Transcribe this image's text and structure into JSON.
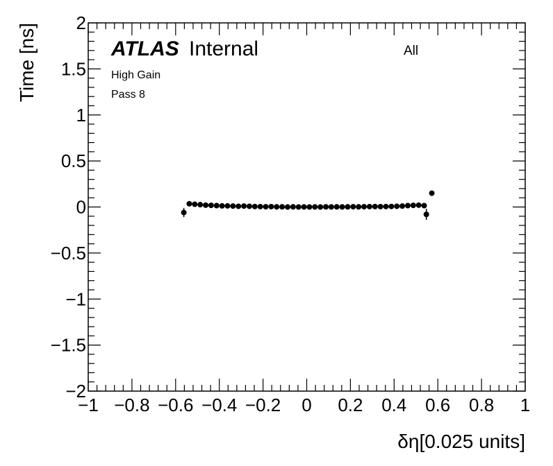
{
  "chart_data": {
    "type": "scatter",
    "title": "",
    "xlabel": "δη[0.025 units]",
    "ylabel": "Time [ns]",
    "xlim": [
      -1,
      1
    ],
    "ylim": [
      -2,
      2
    ],
    "x_tick_labels": [
      "−1",
      "−0.8",
      "−0.6",
      "−0.4",
      "−0.2",
      "0",
      "0.2",
      "0.4",
      "0.6",
      "0.8",
      "1"
    ],
    "x_tick_values": [
      -1,
      -0.8,
      -0.6,
      -0.4,
      -0.2,
      0,
      0.2,
      0.4,
      0.6,
      0.8,
      1
    ],
    "y_tick_labels": [
      "−2",
      "−1.5",
      "−1",
      "−0.5",
      "0",
      "0.5",
      "1",
      "1.5",
      "2"
    ],
    "y_tick_values": [
      -2,
      -1.5,
      -1,
      -0.5,
      0,
      0.5,
      1,
      1.5,
      2
    ],
    "grid": false,
    "series": [
      {
        "points": [
          {
            "x": -0.5625,
            "y": -0.06,
            "err": 0.05
          },
          {
            "x": -0.5375,
            "y": 0.035,
            "err": 0.005
          },
          {
            "x": -0.5125,
            "y": 0.03,
            "err": 0.005
          },
          {
            "x": -0.4875,
            "y": 0.025,
            "err": 0.005
          },
          {
            "x": -0.4625,
            "y": 0.02,
            "err": 0.005
          },
          {
            "x": -0.4375,
            "y": 0.018,
            "err": 0.005
          },
          {
            "x": -0.4125,
            "y": 0.015,
            "err": 0.005
          },
          {
            "x": -0.3875,
            "y": 0.012,
            "err": 0.005
          },
          {
            "x": -0.3625,
            "y": 0.012,
            "err": 0.005
          },
          {
            "x": -0.3375,
            "y": 0.01,
            "err": 0.005
          },
          {
            "x": -0.3125,
            "y": 0.008,
            "err": 0.005
          },
          {
            "x": -0.2875,
            "y": 0.01,
            "err": 0.005
          },
          {
            "x": -0.2625,
            "y": 0.008,
            "err": 0.005
          },
          {
            "x": -0.2375,
            "y": 0.005,
            "err": 0.005
          },
          {
            "x": -0.2125,
            "y": 0.004,
            "err": 0.005
          },
          {
            "x": -0.1875,
            "y": 0.003,
            "err": 0.005
          },
          {
            "x": -0.1625,
            "y": 0.004,
            "err": 0.005
          },
          {
            "x": -0.1375,
            "y": 0.002,
            "err": 0.005
          },
          {
            "x": -0.1125,
            "y": 0.002,
            "err": 0.005
          },
          {
            "x": -0.0875,
            "y": 0.0,
            "err": 0.005
          },
          {
            "x": -0.0625,
            "y": 0.002,
            "err": 0.005
          },
          {
            "x": -0.0375,
            "y": 0.0,
            "err": 0.005
          },
          {
            "x": -0.0125,
            "y": 0.001,
            "err": 0.005
          },
          {
            "x": 0.0125,
            "y": 0.0,
            "err": 0.005
          },
          {
            "x": 0.0375,
            "y": 0.001,
            "err": 0.005
          },
          {
            "x": 0.0625,
            "y": 0.0,
            "err": 0.005
          },
          {
            "x": 0.0875,
            "y": 0.002,
            "err": 0.005
          },
          {
            "x": 0.1125,
            "y": 0.001,
            "err": 0.005
          },
          {
            "x": 0.1375,
            "y": 0.002,
            "err": 0.005
          },
          {
            "x": 0.1625,
            "y": 0.001,
            "err": 0.005
          },
          {
            "x": 0.1875,
            "y": 0.002,
            "err": 0.005
          },
          {
            "x": 0.2125,
            "y": 0.003,
            "err": 0.005
          },
          {
            "x": 0.2375,
            "y": 0.002,
            "err": 0.005
          },
          {
            "x": 0.2625,
            "y": 0.003,
            "err": 0.005
          },
          {
            "x": 0.2875,
            "y": 0.004,
            "err": 0.005
          },
          {
            "x": 0.3125,
            "y": 0.005,
            "err": 0.005
          },
          {
            "x": 0.3375,
            "y": 0.004,
            "err": 0.005
          },
          {
            "x": 0.3625,
            "y": 0.005,
            "err": 0.005
          },
          {
            "x": 0.3875,
            "y": 0.006,
            "err": 0.005
          },
          {
            "x": 0.4125,
            "y": 0.008,
            "err": 0.005
          },
          {
            "x": 0.4375,
            "y": 0.01,
            "err": 0.005
          },
          {
            "x": 0.4625,
            "y": 0.015,
            "err": 0.005
          },
          {
            "x": 0.4875,
            "y": 0.018,
            "err": 0.005
          },
          {
            "x": 0.5125,
            "y": 0.02,
            "err": 0.005
          },
          {
            "x": 0.5375,
            "y": 0.015,
            "err": 0.005
          },
          {
            "x": 0.5475,
            "y": -0.08,
            "err": 0.06
          },
          {
            "x": 0.5725,
            "y": 0.15,
            "err": 0.01
          }
        ]
      }
    ]
  },
  "labels": {
    "atlas": "ATLAS",
    "internal": "Internal",
    "gain": "High Gain",
    "pass": "Pass 8",
    "category": "All"
  },
  "colors": {
    "marker": "#000000",
    "frame": "#000000",
    "background": "#ffffff"
  }
}
